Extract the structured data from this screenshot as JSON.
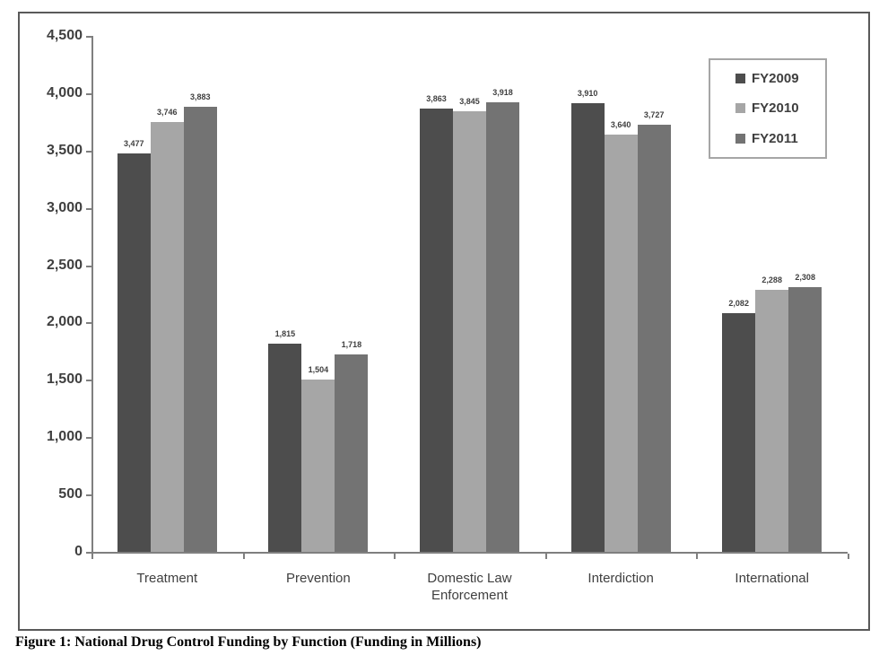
{
  "figure_caption": "Figure 1: National Drug Control Funding by Function (Funding in Millions)",
  "chart_data": {
    "type": "bar",
    "title": "",
    "categories": [
      "Treatment",
      "Prevention",
      "Domestic Law Enforcement",
      "Interdiction",
      "International"
    ],
    "series": [
      {
        "name": "FY2009",
        "color": "#4d4d4d",
        "values": [
          3477,
          1815,
          3863,
          3910,
          2082
        ]
      },
      {
        "name": "FY2010",
        "color": "#a6a6a6",
        "values": [
          3746,
          1504,
          3845,
          3640,
          2288
        ]
      },
      {
        "name": "FY2011",
        "color": "#737373",
        "values": [
          3883,
          1718,
          3918,
          3727,
          2308
        ]
      }
    ],
    "value_labels": [
      "3,477",
      "3,746",
      "3,883",
      "1,815",
      "1,504",
      "1,718",
      "3,863",
      "3,845",
      "3,918",
      "3,910",
      "3,640",
      "3,727",
      "2,082",
      "2,288",
      "2,308"
    ],
    "ylabel": "",
    "xlabel": "",
    "ylim": [
      0,
      4500
    ],
    "ytick_step": 500,
    "ytick_labels": [
      "0",
      "500",
      "1,000",
      "1,500",
      "2,000",
      "2,500",
      "3,000",
      "3,500",
      "4,000",
      "4,500"
    ],
    "grid": false,
    "legend_position": "top-right",
    "axis_color": "#7f7f7f",
    "text_color": "#3f3f3f"
  }
}
